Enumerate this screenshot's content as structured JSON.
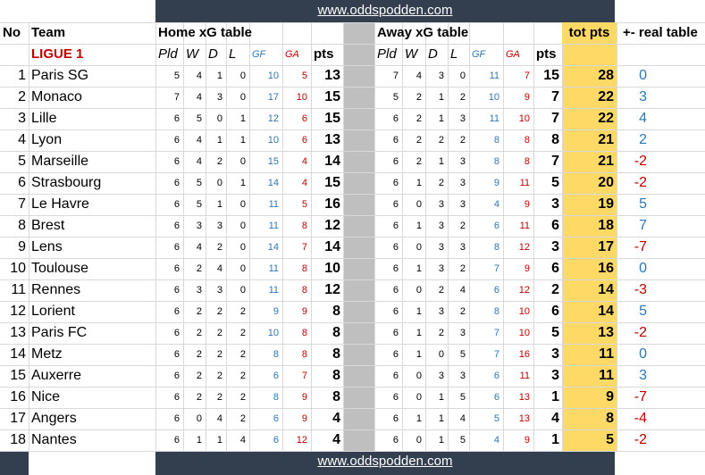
{
  "banner_text": "www.oddspodden.com",
  "headers": {
    "no": "No",
    "team": "Team",
    "home": "Home xG table",
    "away": "Away xG table",
    "tot": "tot pts",
    "real": "+- real table",
    "league": "LIGUE 1",
    "pld": "Pld",
    "w": "W",
    "d": "D",
    "l": "L",
    "gf": "GF",
    "ga": "GA",
    "pts": "pts"
  },
  "rows": [
    {
      "no": "1",
      "team": "Paris SG",
      "h": [
        "5",
        "4",
        "1",
        "0",
        "10",
        "5",
        "13"
      ],
      "a": [
        "7",
        "4",
        "3",
        "0",
        "11",
        "7",
        "15"
      ],
      "tot": "28",
      "real": "0"
    },
    {
      "no": "2",
      "team": "Monaco",
      "h": [
        "7",
        "4",
        "3",
        "0",
        "17",
        "10",
        "15"
      ],
      "a": [
        "5",
        "2",
        "1",
        "2",
        "10",
        "9",
        "7"
      ],
      "tot": "22",
      "real": "3"
    },
    {
      "no": "3",
      "team": "Lille",
      "h": [
        "6",
        "5",
        "0",
        "1",
        "12",
        "6",
        "15"
      ],
      "a": [
        "6",
        "2",
        "1",
        "3",
        "11",
        "10",
        "7"
      ],
      "tot": "22",
      "real": "4"
    },
    {
      "no": "4",
      "team": "Lyon",
      "h": [
        "6",
        "4",
        "1",
        "1",
        "10",
        "6",
        "13"
      ],
      "a": [
        "6",
        "2",
        "2",
        "2",
        "8",
        "8",
        "8"
      ],
      "tot": "21",
      "real": "2"
    },
    {
      "no": "5",
      "team": "Marseille",
      "h": [
        "6",
        "4",
        "2",
        "0",
        "15",
        "4",
        "14"
      ],
      "a": [
        "6",
        "2",
        "1",
        "3",
        "8",
        "8",
        "7"
      ],
      "tot": "21",
      "real": "-2"
    },
    {
      "no": "6",
      "team": "Strasbourg",
      "h": [
        "6",
        "5",
        "0",
        "1",
        "14",
        "4",
        "15"
      ],
      "a": [
        "6",
        "1",
        "2",
        "3",
        "9",
        "11",
        "5"
      ],
      "tot": "20",
      "real": "-2"
    },
    {
      "no": "7",
      "team": "Le Havre",
      "h": [
        "6",
        "5",
        "1",
        "0",
        "11",
        "5",
        "16"
      ],
      "a": [
        "6",
        "0",
        "3",
        "3",
        "4",
        "9",
        "3"
      ],
      "tot": "19",
      "real": "5"
    },
    {
      "no": "8",
      "team": "Brest",
      "h": [
        "6",
        "3",
        "3",
        "0",
        "11",
        "8",
        "12"
      ],
      "a": [
        "6",
        "1",
        "3",
        "2",
        "6",
        "11",
        "6"
      ],
      "tot": "18",
      "real": "7"
    },
    {
      "no": "9",
      "team": "Lens",
      "h": [
        "6",
        "4",
        "2",
        "0",
        "14",
        "7",
        "14"
      ],
      "a": [
        "6",
        "0",
        "3",
        "3",
        "8",
        "12",
        "3"
      ],
      "tot": "17",
      "real": "-7"
    },
    {
      "no": "10",
      "team": "Toulouse",
      "h": [
        "6",
        "2",
        "4",
        "0",
        "11",
        "8",
        "10"
      ],
      "a": [
        "6",
        "1",
        "3",
        "2",
        "7",
        "9",
        "6"
      ],
      "tot": "16",
      "real": "0"
    },
    {
      "no": "11",
      "team": "Rennes",
      "h": [
        "6",
        "3",
        "3",
        "0",
        "11",
        "8",
        "12"
      ],
      "a": [
        "6",
        "0",
        "2",
        "4",
        "6",
        "12",
        "2"
      ],
      "tot": "14",
      "real": "-3"
    },
    {
      "no": "12",
      "team": "Lorient",
      "h": [
        "6",
        "2",
        "2",
        "2",
        "9",
        "9",
        "8"
      ],
      "a": [
        "6",
        "1",
        "3",
        "2",
        "8",
        "10",
        "6"
      ],
      "tot": "14",
      "real": "5"
    },
    {
      "no": "13",
      "team": "Paris FC",
      "h": [
        "6",
        "2",
        "2",
        "2",
        "10",
        "8",
        "8"
      ],
      "a": [
        "6",
        "1",
        "2",
        "3",
        "7",
        "10",
        "5"
      ],
      "tot": "13",
      "real": "-2"
    },
    {
      "no": "14",
      "team": "Metz",
      "h": [
        "6",
        "2",
        "2",
        "2",
        "8",
        "8",
        "8"
      ],
      "a": [
        "6",
        "1",
        "0",
        "5",
        "7",
        "16",
        "3"
      ],
      "tot": "11",
      "real": "0"
    },
    {
      "no": "15",
      "team": "Auxerre",
      "h": [
        "6",
        "2",
        "2",
        "2",
        "6",
        "7",
        "8"
      ],
      "a": [
        "6",
        "0",
        "3",
        "3",
        "6",
        "11",
        "3"
      ],
      "tot": "11",
      "real": "3"
    },
    {
      "no": "16",
      "team": "Nice",
      "h": [
        "6",
        "2",
        "2",
        "2",
        "8",
        "9",
        "8"
      ],
      "a": [
        "6",
        "0",
        "1",
        "5",
        "6",
        "13",
        "1"
      ],
      "tot": "9",
      "real": "-7"
    },
    {
      "no": "17",
      "team": "Angers",
      "h": [
        "6",
        "0",
        "4",
        "2",
        "6",
        "9",
        "4"
      ],
      "a": [
        "6",
        "1",
        "1",
        "4",
        "5",
        "13",
        "4"
      ],
      "tot": "8",
      "real": "-4"
    },
    {
      "no": "18",
      "team": "Nantes",
      "h": [
        "6",
        "1",
        "1",
        "4",
        "6",
        "12",
        "4"
      ],
      "a": [
        "6",
        "0",
        "1",
        "5",
        "4",
        "9",
        "1"
      ],
      "tot": "5",
      "real": "-2"
    }
  ],
  "colors": {
    "banner_bg": "#333f4f",
    "divider_gray": "#bfbfbf",
    "tot_highlight": "#ffd966",
    "blue": "#2e75b6",
    "red": "#c00000"
  }
}
